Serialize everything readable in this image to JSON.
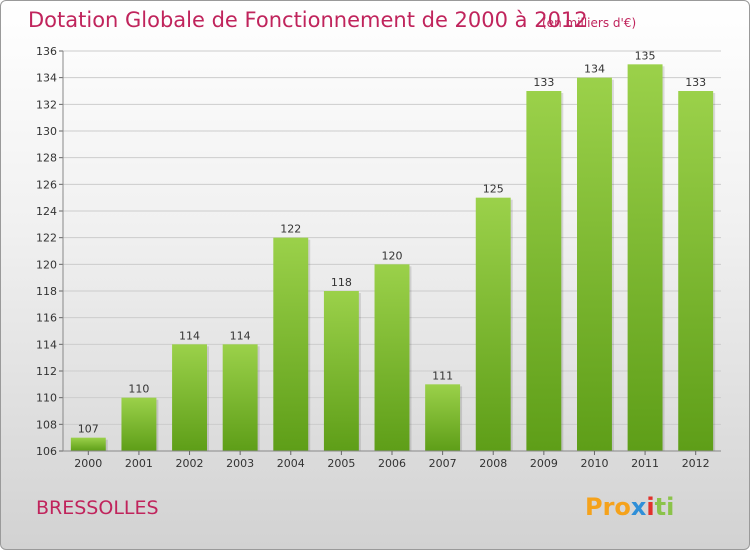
{
  "title": "Dotation Globale de Fonctionnement de 2000 à 2012",
  "unit": "(en milliers d'€)",
  "commune": "BRESSOLLES",
  "logo": {
    "text": "Proxiti",
    "part1": "Pro",
    "part2": "x",
    "part3": "i",
    "part4": "ti"
  },
  "colors": {
    "title": "#c0245c",
    "bar_top": "#9bd14a",
    "bar_bottom": "#5e9e18",
    "grid": "#cccccc"
  },
  "chart_data": {
    "type": "bar",
    "title": "Dotation Globale de Fonctionnement de 2000 à 2012",
    "subtitle": "(en milliers d'€)",
    "categories": [
      "2000",
      "2001",
      "2002",
      "2003",
      "2004",
      "2005",
      "2006",
      "2007",
      "2008",
      "2009",
      "2010",
      "2011",
      "2012"
    ],
    "values": [
      107,
      110,
      114,
      114,
      122,
      118,
      120,
      111,
      125,
      133,
      134,
      135,
      133
    ],
    "ylim": [
      106,
      136
    ],
    "yticks": [
      106,
      108,
      110,
      112,
      114,
      116,
      118,
      120,
      122,
      124,
      126,
      128,
      130,
      132,
      134,
      136
    ],
    "grid": true,
    "xlabel": "",
    "ylabel": ""
  }
}
